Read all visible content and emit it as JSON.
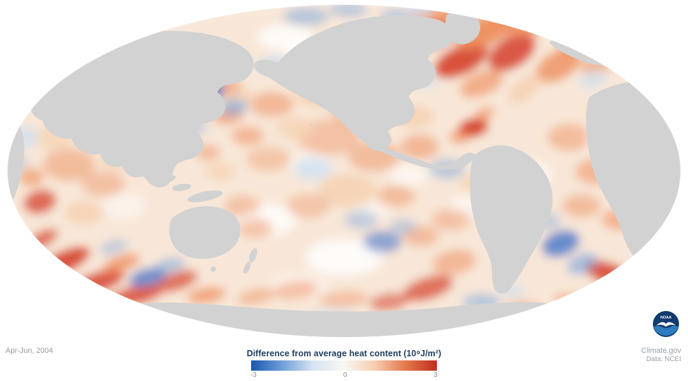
{
  "annotations": {
    "date_label": "Apr-Jun, 2004",
    "credit_line1": "Climate.gov",
    "credit_line2": "Data: NCEI"
  },
  "colorbar": {
    "title": "Difference from average heat content (10⁹J/m²)",
    "tick_min": "-3",
    "tick_mid": "0",
    "tick_max": "3",
    "min_value": -3,
    "max_value": 3,
    "stops": [
      "#1a56b0",
      "#6f9fd8",
      "#d6e4f2",
      "#f9f7f4",
      "#f6cdb0",
      "#e2774a",
      "#c02c1d"
    ]
  },
  "logo": {
    "name": "NOAA",
    "text": "NOAA",
    "circle_color": "#123a6d",
    "wave_color": "#2d7cc0"
  },
  "map": {
    "projection": "elliptical-global",
    "land_color": "#d2d2d2",
    "ocean_color": "#faf5ef",
    "palette": {
      "r3": "#d6402a",
      "r2": "#ee8a57",
      "r1": "#f6d3b4",
      "b3": "#3a6dc8",
      "b2": "#82abdd",
      "b1": "#ccdff1",
      "w": "#ffffff"
    },
    "blob_fields": [
      "x",
      "y",
      "rx",
      "ry",
      "rotation",
      "color_key",
      "opacity"
    ],
    "blobs": [
      [
        500,
        250,
        500,
        250,
        0,
        "r1",
        0.4
      ],
      [
        470,
        85,
        55,
        24,
        0,
        "w",
        0.9
      ],
      [
        545,
        55,
        45,
        20,
        0,
        "w",
        0.85
      ],
      [
        415,
        55,
        40,
        18,
        0,
        "w",
        0.8
      ],
      [
        500,
        375,
        55,
        26,
        0,
        "w",
        0.85
      ],
      [
        390,
        320,
        40,
        22,
        0,
        "w",
        0.8
      ],
      [
        300,
        345,
        32,
        18,
        0,
        "w",
        0.7
      ],
      [
        770,
        255,
        30,
        20,
        0,
        "w",
        0.7
      ],
      [
        595,
        255,
        28,
        16,
        0,
        "w",
        0.6
      ],
      [
        450,
        240,
        30,
        18,
        0,
        "w",
        0.5
      ],
      [
        680,
        300,
        26,
        16,
        0,
        "w",
        0.6
      ],
      [
        180,
        300,
        30,
        18,
        0,
        "w",
        0.5
      ],
      [
        540,
        300,
        30,
        18,
        0,
        "w",
        0.5
      ],
      [
        435,
        415,
        40,
        16,
        0,
        "w",
        0.5
      ],
      [
        870,
        200,
        28,
        18,
        0,
        "w",
        0.5
      ],
      [
        628,
        52,
        40,
        18,
        -20,
        "r3",
        0.85
      ],
      [
        670,
        88,
        42,
        20,
        -25,
        "r3",
        0.9
      ],
      [
        708,
        44,
        48,
        20,
        -28,
        "r2",
        0.9
      ],
      [
        744,
        76,
        38,
        22,
        -32,
        "r3",
        0.85
      ],
      [
        775,
        32,
        42,
        17,
        -20,
        "r2",
        0.8
      ],
      [
        812,
        95,
        36,
        20,
        -30,
        "r2",
        0.75
      ],
      [
        652,
        18,
        55,
        15,
        -8,
        "r2",
        0.7
      ],
      [
        700,
        122,
        33,
        17,
        -22,
        "r2",
        0.6
      ],
      [
        762,
        130,
        28,
        14,
        -38,
        "r1",
        0.9
      ],
      [
        842,
        62,
        32,
        18,
        -28,
        "r2",
        0.55
      ],
      [
        870,
        92,
        28,
        15,
        -22,
        "r2",
        0.5
      ],
      [
        688,
        186,
        22,
        13,
        -12,
        "r3",
        0.95
      ],
      [
        667,
        200,
        14,
        9,
        0,
        "r2",
        0.7
      ],
      [
        705,
        165,
        14,
        9,
        -20,
        "r2",
        0.6
      ],
      [
        332,
        168,
        22,
        13,
        -10,
        "r2",
        0.6
      ],
      [
        360,
        198,
        24,
        14,
        0,
        "r2",
        0.5
      ],
      [
        395,
        152,
        32,
        18,
        0,
        "r2",
        0.5
      ],
      [
        470,
        135,
        42,
        22,
        0,
        "r1",
        0.9
      ],
      [
        520,
        162,
        38,
        20,
        0,
        "r2",
        0.45
      ],
      [
        562,
        122,
        32,
        18,
        0,
        "r2",
        0.5
      ],
      [
        602,
        170,
        28,
        16,
        0,
        "r1",
        0.9
      ],
      [
        478,
        200,
        46,
        26,
        0,
        "r2",
        0.4
      ],
      [
        544,
        228,
        38,
        22,
        0,
        "r2",
        0.45
      ],
      [
        610,
        214,
        28,
        18,
        0,
        "r2",
        0.5
      ],
      [
        430,
        186,
        28,
        16,
        0,
        "r1",
        0.8
      ],
      [
        390,
        232,
        32,
        18,
        0,
        "r2",
        0.35
      ],
      [
        350,
        142,
        20,
        12,
        0,
        "r1",
        0.8
      ],
      [
        505,
        278,
        42,
        24,
        0,
        "r1",
        0.9
      ],
      [
        448,
        300,
        32,
        18,
        0,
        "r2",
        0.35
      ],
      [
        575,
        286,
        28,
        16,
        0,
        "r2",
        0.45
      ],
      [
        655,
        320,
        28,
        16,
        0,
        "r2",
        0.4
      ],
      [
        612,
        344,
        26,
        15,
        0,
        "r2",
        0.45
      ],
      [
        660,
        382,
        32,
        18,
        -10,
        "r2",
        0.5
      ],
      [
        622,
        420,
        38,
        16,
        -18,
        "r3",
        0.7
      ],
      [
        565,
        440,
        28,
        13,
        -8,
        "r3",
        0.55
      ],
      [
        690,
        268,
        22,
        13,
        0,
        "r1",
        0.8
      ],
      [
        352,
        300,
        26,
        15,
        0,
        "r2",
        0.4
      ],
      [
        372,
        332,
        24,
        14,
        0,
        "r2",
        0.45
      ],
      [
        320,
        250,
        22,
        13,
        0,
        "r1",
        0.8
      ],
      [
        302,
        222,
        18,
        12,
        0,
        "r2",
        0.45
      ],
      [
        330,
        128,
        22,
        13,
        -15,
        "r2",
        0.5
      ],
      [
        262,
        102,
        26,
        14,
        -10,
        "r1",
        0.9
      ],
      [
        100,
        240,
        38,
        24,
        0,
        "r2",
        0.45
      ],
      [
        150,
        268,
        32,
        19,
        0,
        "r2",
        0.4
      ],
      [
        58,
        294,
        24,
        17,
        -15,
        "r3",
        0.75
      ],
      [
        45,
        258,
        18,
        13,
        0,
        "r2",
        0.6
      ],
      [
        122,
        310,
        28,
        16,
        0,
        "r1",
        0.9
      ],
      [
        170,
        232,
        26,
        15,
        0,
        "r1",
        0.8
      ],
      [
        78,
        200,
        28,
        17,
        0,
        "r1",
        0.8
      ],
      [
        95,
        165,
        24,
        14,
        0,
        "r1",
        0.7
      ],
      [
        92,
        382,
        42,
        15,
        -25,
        "r3",
        0.9
      ],
      [
        140,
        412,
        42,
        14,
        -18,
        "r3",
        0.85
      ],
      [
        198,
        430,
        38,
        13,
        -12,
        "r3",
        0.8
      ],
      [
        256,
        410,
        33,
        13,
        -18,
        "r3",
        0.7
      ],
      [
        300,
        430,
        28,
        11,
        -10,
        "r2",
        0.7
      ],
      [
        62,
        348,
        24,
        11,
        -28,
        "r3",
        0.7
      ],
      [
        176,
        384,
        28,
        11,
        -20,
        "r2",
        0.75
      ],
      [
        430,
        422,
        32,
        13,
        -8,
        "r2",
        0.45
      ],
      [
        500,
        436,
        36,
        12,
        -4,
        "r2",
        0.4
      ],
      [
        372,
        432,
        28,
        11,
        -12,
        "r2",
        0.45
      ],
      [
        828,
        200,
        32,
        20,
        0,
        "r2",
        0.45
      ],
      [
        868,
        250,
        32,
        19,
        0,
        "r2",
        0.5
      ],
      [
        845,
        300,
        28,
        17,
        0,
        "r2",
        0.45
      ],
      [
        900,
        320,
        26,
        15,
        0,
        "r2",
        0.55
      ],
      [
        922,
        232,
        24,
        14,
        0,
        "r1",
        0.8
      ],
      [
        882,
        162,
        28,
        16,
        0,
        "r1",
        0.85
      ],
      [
        940,
        282,
        20,
        13,
        0,
        "r2",
        0.45
      ],
      [
        884,
        398,
        36,
        15,
        18,
        "r3",
        0.85
      ],
      [
        928,
        414,
        28,
        13,
        22,
        "r3",
        0.75
      ],
      [
        954,
        388,
        20,
        11,
        28,
        "r3",
        0.65
      ],
      [
        832,
        440,
        28,
        11,
        8,
        "r2",
        0.55
      ],
      [
        762,
        450,
        28,
        11,
        4,
        "r2",
        0.45
      ],
      [
        300,
        134,
        26,
        15,
        -12,
        "b3",
        0.8
      ],
      [
        340,
        156,
        20,
        12,
        -8,
        "b2",
        0.65
      ],
      [
        256,
        140,
        17,
        11,
        0,
        "b2",
        0.6
      ],
      [
        250,
        206,
        17,
        11,
        0,
        "b3",
        0.65
      ],
      [
        286,
        186,
        14,
        9,
        0,
        "b2",
        0.5
      ],
      [
        400,
        95,
        24,
        13,
        0,
        "b1",
        0.85
      ],
      [
        445,
        24,
        33,
        13,
        0,
        "b2",
        0.55
      ],
      [
        506,
        14,
        28,
        11,
        0,
        "b2",
        0.5
      ],
      [
        576,
        24,
        24,
        11,
        0,
        "b2",
        0.5
      ],
      [
        612,
        14,
        18,
        9,
        0,
        "b1",
        0.8
      ],
      [
        455,
        246,
        28,
        16,
        0,
        "b1",
        0.75
      ],
      [
        525,
        320,
        24,
        14,
        0,
        "b2",
        0.45
      ],
      [
        556,
        352,
        28,
        16,
        0,
        "b3",
        0.55
      ],
      [
        586,
        330,
        19,
        11,
        0,
        "b2",
        0.45
      ],
      [
        650,
        246,
        26,
        15,
        0,
        "b2",
        0.5
      ],
      [
        715,
        300,
        21,
        13,
        0,
        "b1",
        0.7
      ],
      [
        742,
        330,
        17,
        11,
        0,
        "b2",
        0.4
      ],
      [
        815,
        355,
        28,
        18,
        -20,
        "b3",
        0.75
      ],
      [
        846,
        384,
        23,
        14,
        -24,
        "b2",
        0.65
      ],
      [
        796,
        322,
        19,
        12,
        0,
        "b2",
        0.45
      ],
      [
        215,
        404,
        28,
        13,
        -14,
        "b3",
        0.7
      ],
      [
        248,
        386,
        21,
        11,
        -10,
        "b2",
        0.55
      ],
      [
        165,
        360,
        21,
        10,
        -18,
        "b2",
        0.45
      ],
      [
        700,
        440,
        28,
        12,
        0,
        "b2",
        0.55
      ],
      [
        745,
        424,
        19,
        10,
        0,
        "b1",
        0.6
      ],
      [
        480,
        460,
        33,
        11,
        0,
        "b1",
        0.5
      ],
      [
        35,
        200,
        21,
        15,
        0,
        "b1",
        0.75
      ],
      [
        25,
        236,
        14,
        11,
        0,
        "b2",
        0.4
      ],
      [
        862,
        116,
        21,
        12,
        -15,
        "b1",
        0.7
      ],
      [
        620,
        120,
        17,
        10,
        0,
        "b1",
        0.5
      ],
      [
        952,
        222,
        19,
        13,
        0,
        "b1",
        0.7
      ],
      [
        962,
        260,
        14,
        11,
        0,
        "b1",
        0.6
      ],
      [
        195,
        180,
        21,
        12,
        0,
        "b1",
        0.7
      ],
      [
        228,
        160,
        14,
        9,
        0,
        "b2",
        0.4
      ],
      [
        120,
        172,
        19,
        11,
        0,
        "b1",
        0.6
      ],
      [
        905,
        442,
        23,
        10,
        0,
        "b2",
        0.45
      ]
    ]
  }
}
